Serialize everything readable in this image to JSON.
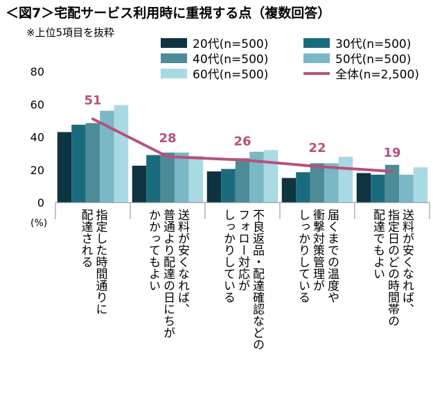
{
  "chart_data": {
    "type": "bar",
    "title": "＜図7＞宅配サービス利用時に重視する点（複数回答）",
    "subtitle": "※上位5項目を抜粋",
    "ylabel": "(%)",
    "ylim": [
      0,
      80
    ],
    "yticks": [
      "0",
      "20",
      "40",
      "60",
      "80"
    ],
    "categories": [
      [
        "指定した時間通りに",
        "配達される"
      ],
      [
        "送料が安くなれば、",
        "普通より配達の日にちが",
        "かかってもよい"
      ],
      [
        "不良返品・配達確認などの",
        "フォロー対応が",
        "しっかりしている"
      ],
      [
        "届くまでの温度や",
        "衝撃対策管理が",
        "しっかりしている"
      ],
      [
        "送料が安くなれば、",
        "指定日のどの時間帯の",
        "配達でもよい"
      ]
    ],
    "series": [
      {
        "name": "20代(n=500)",
        "color": "#0d3440",
        "values": [
          43,
          22.5,
          19,
          15,
          18
        ]
      },
      {
        "name": "30代(n=500)",
        "color": "#1b6b7e",
        "values": [
          47.5,
          29,
          20.5,
          18.5,
          17
        ]
      },
      {
        "name": "40代(n=500)",
        "color": "#4d8b96",
        "values": [
          48.5,
          30.5,
          27,
          24,
          23
        ]
      },
      {
        "name": "50代(n=500)",
        "color": "#7ab8c6",
        "values": [
          56,
          30.5,
          31,
          24,
          17
        ]
      },
      {
        "name": "60代(n=500)",
        "color": "#a9dae3",
        "values": [
          59.5,
          28.5,
          32,
          28,
          21.5
        ]
      }
    ],
    "line": {
      "name": "全体(n=2,500)",
      "color": "#b84f7c",
      "values": [
        51,
        28,
        26,
        22,
        19
      ],
      "labels": [
        "51",
        "28",
        "26",
        "22",
        "19"
      ]
    }
  }
}
